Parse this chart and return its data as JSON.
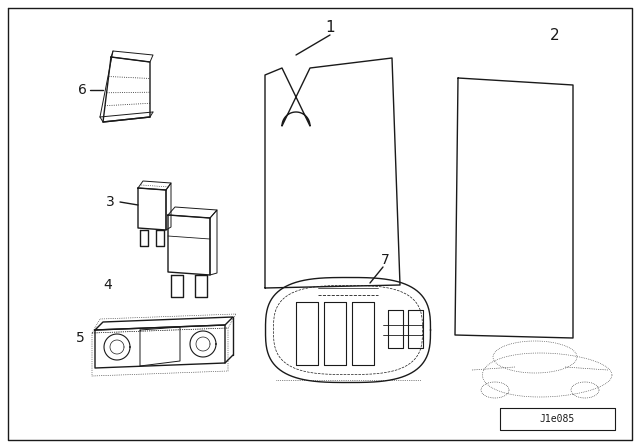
{
  "bg_color": "#ffffff",
  "line_color": "#1a1a1a",
  "watermark": "J1e085",
  "fig_width": 6.4,
  "fig_height": 4.48
}
